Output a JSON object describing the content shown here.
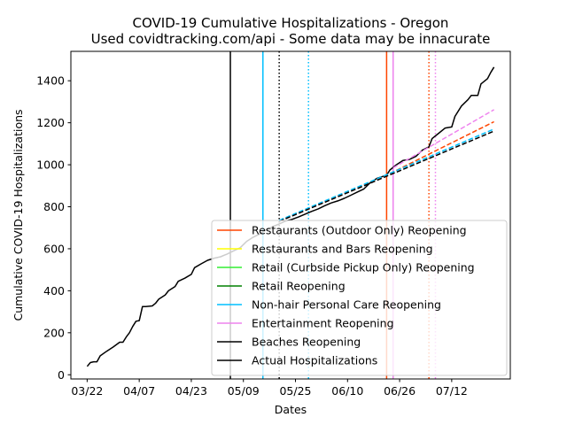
{
  "chart_data": {
    "type": "line",
    "title": "COVID-19 Cumulative Hospitalizations - Oregon",
    "subtitle": "Used covidtracking.com/api - Some data may be innacurate",
    "xlabel": "Dates",
    "ylabel": "Cumulative COVID-19 Hospitalizations",
    "xlim": [
      "2020-03-17",
      "2020-07-30"
    ],
    "ylim": [
      -20,
      1540
    ],
    "x_ticks": [
      {
        "date": "2020-03-22",
        "label": "03/22"
      },
      {
        "date": "2020-04-07",
        "label": "04/07"
      },
      {
        "date": "2020-04-23",
        "label": "04/23"
      },
      {
        "date": "2020-05-09",
        "label": "05/09"
      },
      {
        "date": "2020-05-25",
        "label": "05/25"
      },
      {
        "date": "2020-06-10",
        "label": "06/10"
      },
      {
        "date": "2020-06-26",
        "label": "06/26"
      },
      {
        "date": "2020-07-12",
        "label": "07/12"
      }
    ],
    "y_ticks": [
      0,
      200,
      400,
      600,
      800,
      1000,
      1200,
      1400
    ],
    "legend_position": "lower-right",
    "grid": false,
    "legend": [
      {
        "label": "Restaurants (Outdoor Only) Reopening",
        "color": "#ff4500"
      },
      {
        "label": "Restaurants and Bars Reopening",
        "color": "#ffff00"
      },
      {
        "label": "Retail (Curbside Pickup Only) Reopening",
        "color": "#33ee33"
      },
      {
        "label": "Retail Reopening",
        "color": "#008000"
      },
      {
        "label": "Non-hair Personal Care Reopening",
        "color": "#00bfff"
      },
      {
        "label": "Entertainment Reopening",
        "color": "#ee82ee"
      },
      {
        "label": "Beaches Reopening",
        "color": "#000000"
      },
      {
        "label": "Actual Hospitalizations",
        "color": "#000000"
      }
    ],
    "vertical_lines": [
      {
        "date": "2020-05-05",
        "color": "#000000",
        "style": "solid"
      },
      {
        "date": "2020-05-15",
        "color": "#00bfff",
        "style": "solid"
      },
      {
        "date": "2020-05-20",
        "color": "#000000",
        "style": "dotted"
      },
      {
        "date": "2020-05-29",
        "color": "#00bfff",
        "style": "dotted"
      },
      {
        "date": "2020-06-22",
        "color": "#ff4500",
        "style": "solid"
      },
      {
        "date": "2020-06-24",
        "color": "#ee82ee",
        "style": "solid"
      },
      {
        "date": "2020-07-05",
        "color": "#ff4500",
        "style": "dotted"
      },
      {
        "date": "2020-07-07",
        "color": "#ee82ee",
        "style": "dotted"
      }
    ],
    "series": [
      {
        "name": "Actual Hospitalizations",
        "color": "#000000",
        "style": "solid",
        "points": [
          [
            "2020-03-22",
            40
          ],
          [
            "2020-03-23",
            58
          ],
          [
            "2020-03-24",
            62
          ],
          [
            "2020-03-25",
            62
          ],
          [
            "2020-03-26",
            90
          ],
          [
            "2020-03-28",
            112
          ],
          [
            "2020-03-30",
            132
          ],
          [
            "2020-04-01",
            155
          ],
          [
            "2020-04-02",
            155
          ],
          [
            "2020-04-03",
            180
          ],
          [
            "2020-04-04",
            200
          ],
          [
            "2020-04-05",
            230
          ],
          [
            "2020-04-06",
            255
          ],
          [
            "2020-04-07",
            258
          ],
          [
            "2020-04-08",
            325
          ],
          [
            "2020-04-09",
            325
          ],
          [
            "2020-04-11",
            328
          ],
          [
            "2020-04-12",
            340
          ],
          [
            "2020-04-13",
            360
          ],
          [
            "2020-04-15",
            380
          ],
          [
            "2020-04-16",
            400
          ],
          [
            "2020-04-18",
            420
          ],
          [
            "2020-04-19",
            445
          ],
          [
            "2020-04-21",
            460
          ],
          [
            "2020-04-23",
            478
          ],
          [
            "2020-04-24",
            510
          ],
          [
            "2020-04-26",
            528
          ],
          [
            "2020-04-28",
            545
          ],
          [
            "2020-04-30",
            555
          ],
          [
            "2020-05-02",
            562
          ],
          [
            "2020-05-04",
            575
          ],
          [
            "2020-05-06",
            590
          ],
          [
            "2020-05-08",
            605
          ],
          [
            "2020-05-10",
            635
          ],
          [
            "2020-05-12",
            655
          ],
          [
            "2020-05-14",
            670
          ],
          [
            "2020-05-16",
            690
          ],
          [
            "2020-05-18",
            705
          ],
          [
            "2020-05-20",
            718
          ],
          [
            "2020-05-22",
            732
          ],
          [
            "2020-05-24",
            740
          ],
          [
            "2020-05-26",
            752
          ],
          [
            "2020-05-28",
            765
          ],
          [
            "2020-05-30",
            778
          ],
          [
            "2020-06-01",
            790
          ],
          [
            "2020-06-03",
            805
          ],
          [
            "2020-06-05",
            818
          ],
          [
            "2020-06-07",
            828
          ],
          [
            "2020-06-09",
            840
          ],
          [
            "2020-06-11",
            855
          ],
          [
            "2020-06-13",
            870
          ],
          [
            "2020-06-15",
            885
          ],
          [
            "2020-06-17",
            915
          ],
          [
            "2020-06-19",
            935
          ],
          [
            "2020-06-21",
            945
          ],
          [
            "2020-06-22",
            950
          ],
          [
            "2020-06-23",
            975
          ],
          [
            "2020-06-25",
            1000
          ],
          [
            "2020-06-27",
            1020
          ],
          [
            "2020-06-29",
            1025
          ],
          [
            "2020-07-01",
            1040
          ],
          [
            "2020-07-03",
            1070
          ],
          [
            "2020-07-05",
            1085
          ],
          [
            "2020-07-06",
            1125
          ],
          [
            "2020-07-08",
            1150
          ],
          [
            "2020-07-10",
            1175
          ],
          [
            "2020-07-12",
            1180
          ],
          [
            "2020-07-13",
            1230
          ],
          [
            "2020-07-15",
            1280
          ],
          [
            "2020-07-17",
            1310
          ],
          [
            "2020-07-18",
            1330
          ],
          [
            "2020-07-20",
            1330
          ],
          [
            "2020-07-21",
            1385
          ],
          [
            "2020-07-23",
            1410
          ],
          [
            "2020-07-24",
            1440
          ],
          [
            "2020-07-25",
            1465
          ]
        ]
      },
      {
        "name": "Restaurants (Outdoor Only) Reopening",
        "color": "#ff4500",
        "style": "dashed",
        "points": [
          [
            "2020-05-20",
            732
          ],
          [
            "2020-06-22",
            950
          ],
          [
            "2020-07-25",
            1205
          ]
        ]
      },
      {
        "name": "Entertainment Reopening",
        "color": "#ee82ee",
        "style": "dashed",
        "points": [
          [
            "2020-06-24",
            985
          ],
          [
            "2020-07-25",
            1262
          ]
        ]
      },
      {
        "name": "Non-hair Personal Care Reopening",
        "color": "#00bfff",
        "style": "dashed",
        "points": [
          [
            "2020-05-20",
            735
          ],
          [
            "2020-07-25",
            1170
          ]
        ]
      },
      {
        "name": "Beaches Reopening",
        "color": "#000000",
        "style": "dashed",
        "points": [
          [
            "2020-05-20",
            730
          ],
          [
            "2020-07-25",
            1160
          ]
        ]
      }
    ]
  }
}
